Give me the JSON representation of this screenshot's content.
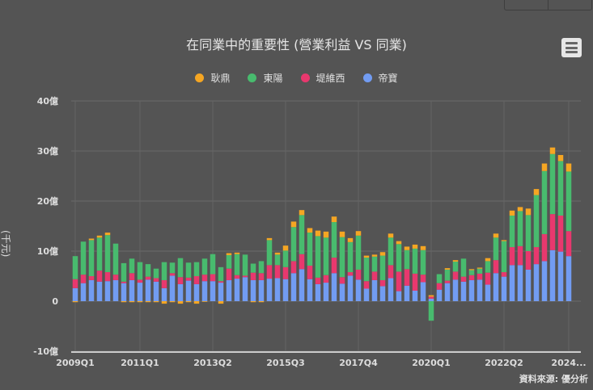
{
  "window": {
    "top_buttons": [
      "",
      ""
    ]
  },
  "header": {
    "title": "在同業中的重要性 (營業利益 VS 同業)",
    "menu_icon": "hamburger-menu-icon"
  },
  "legend": [
    {
      "label": "耿鼎",
      "color": "#f5a623"
    },
    {
      "label": "東陽",
      "color": "#48bb6e"
    },
    {
      "label": "堤維西",
      "color": "#e8386e"
    },
    {
      "label": "帝寶",
      "color": "#729cf2"
    }
  ],
  "yaxis": {
    "title": "(千元)",
    "ticks": [
      "40億",
      "30億",
      "20億",
      "10億",
      "0",
      "-10億"
    ]
  },
  "xaxis": {
    "ticks": [
      "2009Q1",
      "2011Q1",
      "2013Q2",
      "2015Q3",
      "2017Q4",
      "2020Q1",
      "2022Q2",
      "2024..."
    ]
  },
  "footer": {
    "source": "資料來源: 優分析"
  },
  "chart_data": {
    "type": "bar",
    "stacked": true,
    "title": "在同業中的重要性 (營業利益 VS 同業)",
    "xlabel": "",
    "ylabel": "(千元)",
    "ylim": [
      -10,
      40
    ],
    "unit": "億",
    "grid": true,
    "legend_position": "top",
    "categories": [
      "2009Q1",
      "2009Q2",
      "2009Q3",
      "2009Q4",
      "2010Q1",
      "2010Q2",
      "2010Q3",
      "2010Q4",
      "2011Q1",
      "2011Q2",
      "2011Q3",
      "2011Q4",
      "2012Q1",
      "2012Q2",
      "2012Q3",
      "2012Q4",
      "2013Q1",
      "2013Q2",
      "2013Q3",
      "2013Q4",
      "2014Q1",
      "2014Q2",
      "2014Q3",
      "2014Q4",
      "2015Q1",
      "2015Q2",
      "2015Q3",
      "2015Q4",
      "2016Q1",
      "2016Q2",
      "2016Q3",
      "2016Q4",
      "2017Q1",
      "2017Q2",
      "2017Q3",
      "2017Q4",
      "2018Q1",
      "2018Q2",
      "2018Q3",
      "2018Q4",
      "2019Q1",
      "2019Q2",
      "2019Q3",
      "2019Q4",
      "2020Q1",
      "2020Q2",
      "2020Q3",
      "2020Q4",
      "2021Q1",
      "2021Q2",
      "2021Q3",
      "2021Q4",
      "2022Q1",
      "2022Q2",
      "2022Q3",
      "2022Q4",
      "2023Q1",
      "2023Q2",
      "2023Q3",
      "2023Q4",
      "2024Q1",
      "2024Q2"
    ],
    "series": [
      {
        "name": "帝寶",
        "color": "#729cf2",
        "values": [
          2.6,
          3.6,
          4.2,
          3.9,
          4.0,
          4.2,
          3.6,
          4.2,
          3.7,
          4.3,
          3.9,
          2.6,
          5.1,
          3.4,
          4.1,
          3.4,
          4.0,
          4.0,
          3.7,
          4.2,
          4.5,
          4.8,
          4.2,
          4.2,
          4.5,
          4.6,
          4.4,
          5.6,
          6.4,
          4.4,
          3.4,
          3.7,
          5.6,
          3.5,
          5.1,
          4.3,
          2.5,
          4.2,
          3.0,
          4.6,
          2.0,
          3.1,
          2.1,
          3.8,
          0.5,
          2.3,
          3.6,
          4.3,
          3.9,
          4.2,
          4.3,
          3.3,
          5.6,
          4.9,
          7.2,
          7.2,
          6.3,
          7.4,
          8.0,
          10.2,
          9.9,
          9.0
        ]
      },
      {
        "name": "堤維西",
        "color": "#e8386e",
        "values": [
          1.8,
          1.7,
          0.8,
          2.2,
          1.8,
          1.1,
          0.3,
          1.4,
          0.6,
          0.6,
          0.7,
          1.6,
          0.5,
          1.4,
          0.6,
          1.6,
          1.3,
          1.4,
          0.3,
          2.3,
          0.7,
          0.3,
          1.5,
          1.4,
          2.7,
          2.6,
          2.4,
          2.4,
          3.0,
          2.7,
          1.3,
          1.5,
          3.1,
          1.3,
          0.7,
          2.0,
          1.5,
          1.7,
          1.2,
          2.6,
          3.9,
          3.3,
          3.4,
          1.5,
          0.4,
          1.3,
          0.5,
          1.6,
          1.0,
          1.0,
          1.2,
          2.4,
          2.6,
          0.9,
          3.6,
          3.8,
          3.7,
          3.4,
          5.4,
          7.2,
          7.2,
          5.0
        ]
      },
      {
        "name": "東陽",
        "color": "#48bb6e",
        "values": [
          4.6,
          6.6,
          7.2,
          6.6,
          7.4,
          6.2,
          3.7,
          2.9,
          3.5,
          2.5,
          1.9,
          3.6,
          2.1,
          3.8,
          3.0,
          2.8,
          3.2,
          4.0,
          2.8,
          2.7,
          4.2,
          4.2,
          1.8,
          2.4,
          5.0,
          2.1,
          3.3,
          6.8,
          7.8,
          6.6,
          8.3,
          7.5,
          7.1,
          8.0,
          6.0,
          6.8,
          4.7,
          3.0,
          4.9,
          5.5,
          5.5,
          3.8,
          5.0,
          4.9,
          -3.9,
          1.8,
          2.2,
          2.0,
          3.6,
          1.0,
          1.0,
          2.3,
          4.5,
          6.2,
          6.3,
          7.0,
          7.2,
          10.4,
          12.6,
          12.0,
          10.9,
          11.9
        ]
      },
      {
        "name": "耿鼎",
        "color": "#f5a623",
        "values": [
          -0.2,
          0.0,
          0.3,
          0.4,
          0.5,
          0.0,
          -0.2,
          -0.2,
          -0.2,
          -0.2,
          -0.2,
          -0.5,
          -0.2,
          -0.5,
          -0.2,
          -0.5,
          -0.1,
          0.0,
          -0.5,
          0.4,
          0.3,
          0.0,
          -0.2,
          -0.2,
          0.4,
          0.4,
          1.0,
          1.1,
          1.0,
          0.9,
          1.1,
          1.2,
          1.1,
          1.1,
          0.8,
          0.9,
          0.4,
          0.4,
          0.7,
          0.8,
          0.6,
          0.7,
          0.8,
          0.8,
          0.3,
          0.0,
          0.3,
          0.3,
          0.0,
          0.2,
          0.2,
          0.6,
          0.8,
          0.2,
          1.0,
          0.8,
          1.3,
          1.2,
          1.5,
          1.3,
          1.2,
          1.6
        ]
      }
    ]
  }
}
